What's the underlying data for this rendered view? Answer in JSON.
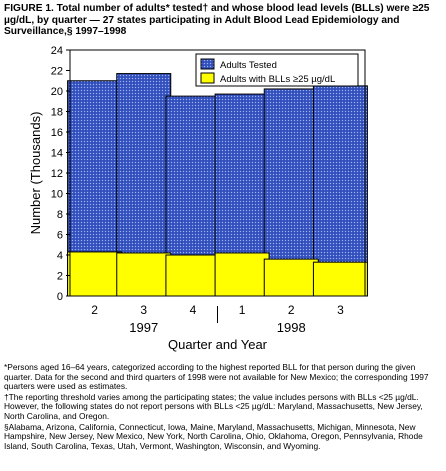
{
  "title": {
    "label": "FIGURE 1.",
    "text": "Total number of adults* tested† and whose blood lead levels (BLLs) were ≥25 µg/dL, by quarter — 27 states participating in Adult Blood Lead Epidemiology and Surveillance,§ 1997–1998"
  },
  "chart_data": {
    "type": "bar",
    "stacked": false,
    "overlapping": true,
    "categories": [
      "2",
      "3",
      "4",
      "1",
      "2",
      "3"
    ],
    "year_groups": [
      {
        "label": "1997",
        "categories": [
          0,
          1,
          2
        ]
      },
      {
        "label": "1998",
        "categories": [
          3,
          4,
          5
        ]
      }
    ],
    "series": [
      {
        "name": "Adults Tested",
        "values": [
          21.0,
          21.7,
          19.5,
          19.7,
          20.2,
          20.5
        ],
        "color": "#3c5bc8",
        "pattern": "dotted"
      },
      {
        "name": "Adults with BLLs ≥25 µg/dL",
        "values": [
          4.3,
          4.2,
          4.0,
          4.2,
          3.6,
          3.3
        ],
        "color": "#ffff00"
      }
    ],
    "xlabel": "Quarter and Year",
    "ylabel": "Number (Thousands)",
    "ylim": [
      0,
      24
    ],
    "yticks": [
      0,
      2,
      4,
      6,
      8,
      10,
      12,
      14,
      16,
      18,
      20,
      22,
      24
    ],
    "grid": false,
    "legend": "top-right"
  },
  "footnotes": [
    "*Persons aged 16–64 years, categorized according to the highest reported BLL for that person during the given quarter. Data for the second and third quarters of 1998 were not available for New Mexico; the corresponding 1997 quarters were used as estimates.",
    "†The reporting threshold varies among the participating states; the value includes persons with BLLs <25 µg/dL. However, the following states do not report persons with BLLs <25 µg/dL: Maryland, Massachusetts, New Jersey, North Carolina, and Oregon.",
    "§Alabama, Arizona, California, Connecticut, Iowa, Maine, Maryland, Massachusetts, Michigan, Minnesota, New Hampshire, New Jersey, New Mexico, New York, North Carolina, Ohio, Oklahoma, Oregon, Pennsylvania, Rhode Island, South Carolina, Texas, Utah, Vermont, Washington, Wisconsin, and Wyoming."
  ]
}
